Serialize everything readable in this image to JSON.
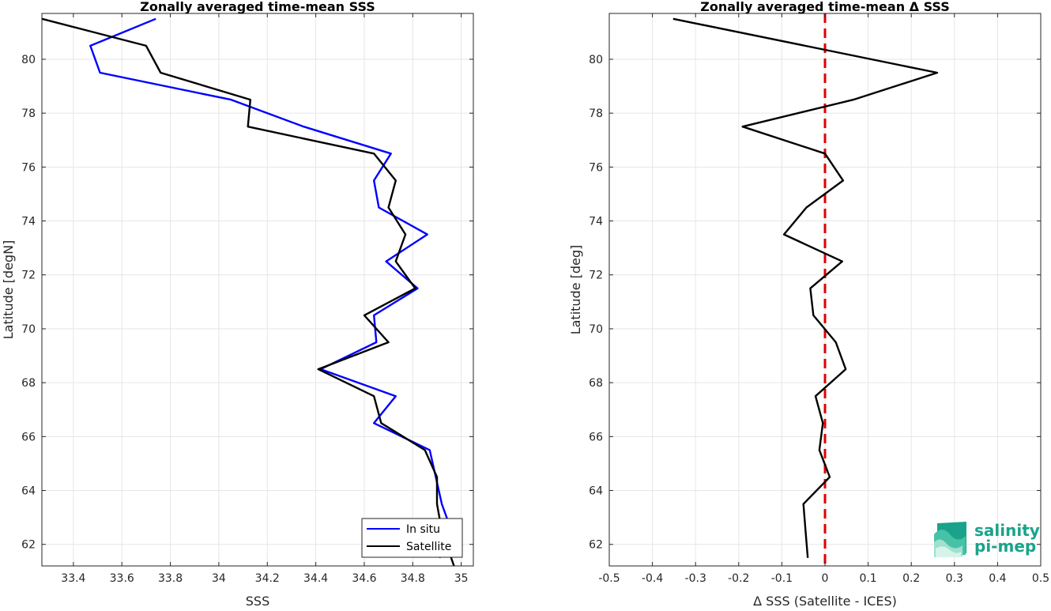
{
  "chart_data": [
    {
      "type": "line",
      "title": "Zonally averaged time-mean SSS",
      "xlabel": "SSS",
      "ylabel": "Latitude [degN]",
      "xlim": [
        33.27,
        35.05
      ],
      "ylim": [
        61.2,
        81.7
      ],
      "xticks": [
        33.4,
        33.6,
        33.8,
        34,
        34.2,
        34.4,
        34.6,
        34.8,
        35
      ],
      "xtick_labels": [
        "33.4",
        "33.6",
        "33.8",
        "34",
        "34.2",
        "34.4",
        "34.6",
        "34.8",
        "35"
      ],
      "yticks": [
        62,
        64,
        66,
        68,
        70,
        72,
        74,
        76,
        78,
        80
      ],
      "ytick_labels": [
        "62",
        "64",
        "66",
        "68",
        "70",
        "72",
        "74",
        "76",
        "78",
        "80"
      ],
      "grid": true,
      "legend_position": "bottom-right",
      "series": [
        {
          "name": "In situ",
          "color": "#0000ff",
          "x": [
            34.91,
            34.96,
            34.92,
            34.87,
            34.64,
            34.73,
            34.42,
            34.65,
            34.64,
            34.82,
            34.69,
            34.86,
            34.66,
            34.64,
            34.71,
            34.35,
            34.05,
            33.51,
            33.47,
            33.74
          ],
          "y": [
            61.5,
            62.5,
            63.5,
            65.5,
            66.5,
            67.5,
            68.5,
            69.5,
            70.5,
            71.5,
            72.5,
            73.5,
            74.5,
            75.5,
            76.5,
            77.5,
            78.5,
            79.5,
            80.5,
            81.5
          ]
        },
        {
          "name": "Satellite",
          "color": "#000000",
          "x": [
            34.97,
            34.92,
            34.9,
            34.9,
            34.85,
            34.67,
            34.64,
            34.41,
            34.7,
            34.6,
            34.81,
            34.73,
            34.77,
            34.7,
            34.73,
            34.64,
            34.12,
            34.13,
            33.76,
            33.7,
            33.27
          ],
          "y": [
            61.2,
            62.5,
            63.5,
            64.5,
            65.5,
            66.5,
            67.5,
            68.5,
            69.5,
            70.5,
            71.5,
            72.5,
            73.5,
            74.5,
            75.5,
            76.5,
            77.5,
            78.5,
            79.5,
            80.5,
            81.5
          ]
        }
      ]
    },
    {
      "type": "line",
      "title": "Zonally averaged time-mean Δ SSS",
      "xlabel": "Δ SSS (Satellite - ICES)",
      "ylabel": "Latitude [deg]",
      "xlim": [
        -0.5,
        0.5
      ],
      "ylim": [
        61.2,
        81.7
      ],
      "xticks": [
        -0.5,
        -0.4,
        -0.3,
        -0.2,
        -0.1,
        0,
        0.1,
        0.2,
        0.3,
        0.4,
        0.5
      ],
      "xtick_labels": [
        "-0.5",
        "-0.4",
        "-0.3",
        "-0.2",
        "-0.1",
        "0",
        "0.1",
        "0.2",
        "0.3",
        "0.4",
        "0.5"
      ],
      "yticks": [
        62,
        64,
        66,
        68,
        70,
        72,
        74,
        76,
        78,
        80
      ],
      "ytick_labels": [
        "62",
        "64",
        "66",
        "68",
        "70",
        "72",
        "74",
        "76",
        "78",
        "80"
      ],
      "grid": true,
      "reference_line": {
        "x": 0,
        "color": "#e00000",
        "style": "dashed"
      },
      "series": [
        {
          "color": "#000000",
          "x": [
            -0.04,
            -0.045,
            -0.05,
            0.011,
            -0.013,
            -0.005,
            -0.022,
            0.048,
            0.025,
            -0.027,
            -0.034,
            0.04,
            -0.095,
            -0.043,
            0.042,
            0.0,
            -0.191,
            0.066,
            0.26,
            -0.352
          ],
          "y": [
            61.5,
            62.5,
            63.5,
            64.5,
            65.5,
            66.5,
            67.5,
            68.5,
            69.5,
            70.5,
            71.5,
            72.5,
            73.5,
            74.5,
            75.5,
            76.5,
            77.5,
            78.5,
            79.5,
            81.5
          ]
        }
      ]
    }
  ],
  "logo": {
    "line1": "salinity",
    "line2": "pi-mep",
    "color": "#1aa38a"
  }
}
